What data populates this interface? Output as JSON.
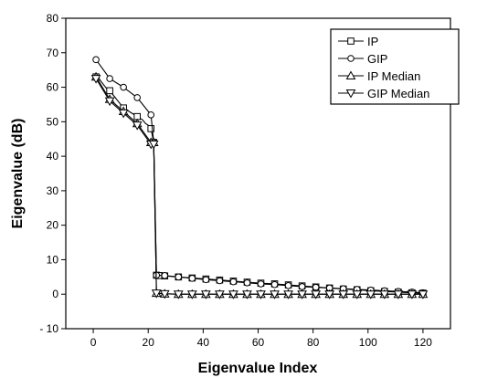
{
  "chart_data": {
    "type": "line",
    "xlabel": "Eigenvalue Index",
    "ylabel": "Eigenvalue (dB)",
    "xlim": [
      -10,
      130
    ],
    "ylim": [
      -10,
      80
    ],
    "xticks": [
      0,
      20,
      40,
      60,
      80,
      100,
      120
    ],
    "yticks": [
      -10,
      0,
      10,
      20,
      30,
      40,
      50,
      60,
      70,
      80
    ],
    "xtick_labels": [
      "0",
      "20",
      "40",
      "60",
      "80",
      "100",
      "120"
    ],
    "ytick_labels": [
      "- 10",
      "0",
      "10",
      "20",
      "30",
      "40",
      "50",
      "60",
      "70",
      "80"
    ],
    "grid": false,
    "legend_position": "top-right",
    "series": [
      {
        "name": "IP",
        "marker": "square",
        "x": [
          1,
          2,
          3,
          4,
          5,
          6,
          7,
          8,
          9,
          10,
          11,
          12,
          13,
          14,
          15,
          16,
          17,
          18,
          19,
          20,
          21,
          22,
          23,
          24,
          26,
          31,
          36,
          41,
          46,
          51,
          56,
          61,
          66,
          71,
          76,
          81,
          86,
          91,
          96,
          101,
          106,
          111,
          116,
          120
        ],
        "y": [
          63,
          62.5,
          61.5,
          60.5,
          59.5,
          59,
          58,
          57,
          56,
          55,
          54,
          53.5,
          53,
          52.5,
          52,
          51.5,
          51,
          50.5,
          49.5,
          49,
          48,
          44,
          5.5,
          5.4,
          5.3,
          5,
          4.7,
          4.4,
          4.1,
          3.8,
          3.5,
          3.2,
          3,
          2.7,
          2.4,
          2.1,
          1.8,
          1.5,
          1.3,
          1,
          0.8,
          0.6,
          0.4,
          0.3
        ]
      },
      {
        "name": "GIP",
        "marker": "circle",
        "x": [
          1,
          6,
          11,
          16,
          21,
          22,
          23,
          26,
          31,
          36,
          41,
          46,
          51,
          56,
          61,
          66,
          71,
          76,
          81,
          86,
          91,
          96,
          101,
          106,
          111,
          116,
          120
        ],
        "y": [
          68,
          62.5,
          60,
          57,
          52,
          44,
          5.5,
          5.4,
          5,
          4.6,
          4.2,
          3.9,
          3.6,
          3.3,
          3,
          2.8,
          2.5,
          2.2,
          2,
          1.8,
          1.6,
          1.4,
          1.2,
          1,
          0.8,
          0.6,
          0.4
        ]
      },
      {
        "name": "IP Median",
        "marker": "triangle-up",
        "x": [
          1,
          6,
          11,
          16,
          21,
          22,
          23,
          26,
          31,
          36,
          41,
          46,
          51,
          56,
          61,
          66,
          71,
          76,
          81,
          86,
          91,
          96,
          101,
          106,
          111,
          116,
          120
        ],
        "y": [
          63,
          56.5,
          53,
          49.5,
          44,
          44,
          0.3,
          0.1,
          0,
          0,
          0,
          0,
          0,
          0,
          0,
          0,
          0,
          0,
          0,
          0,
          0,
          0,
          0,
          0,
          0,
          0,
          0
        ]
      },
      {
        "name": "GIP Median",
        "marker": "triangle-down",
        "x": [
          1,
          6,
          11,
          16,
          21,
          22,
          23,
          26,
          31,
          36,
          41,
          46,
          51,
          56,
          61,
          66,
          71,
          76,
          81,
          86,
          91,
          96,
          101,
          106,
          111,
          116,
          120
        ],
        "y": [
          62.5,
          56,
          52.5,
          49,
          43.5,
          43.5,
          0.3,
          0.1,
          0,
          0,
          0,
          0,
          0,
          0,
          0,
          0,
          0,
          0,
          0,
          0,
          0,
          0,
          0,
          0,
          0,
          0,
          0
        ]
      }
    ]
  }
}
